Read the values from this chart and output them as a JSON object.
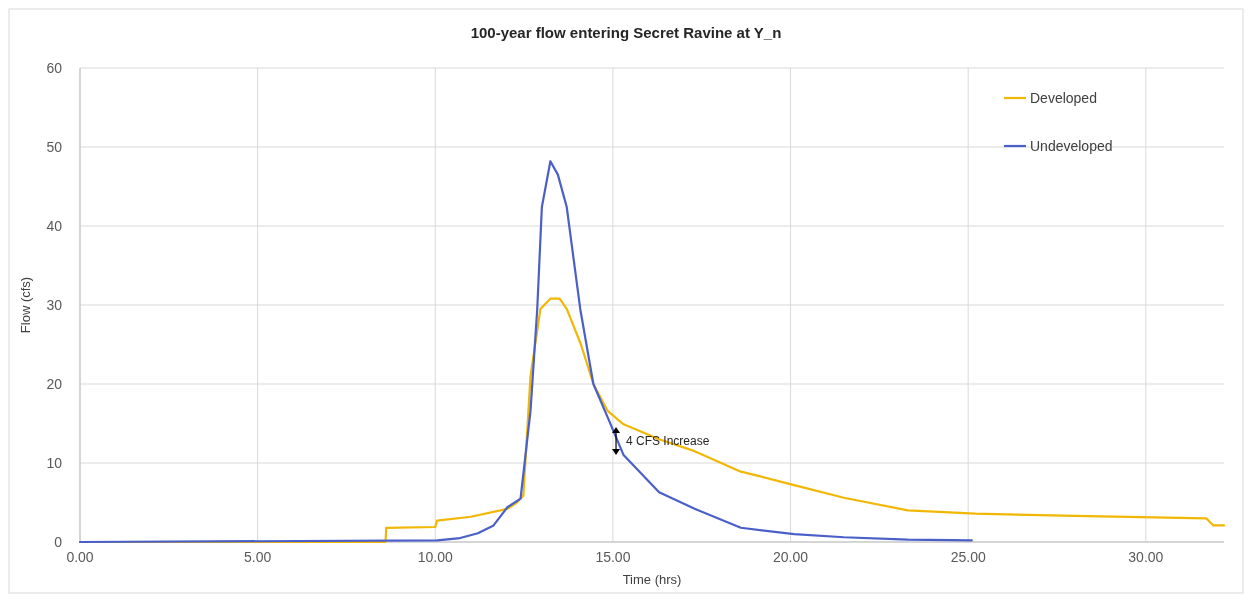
{
  "chart_data": {
    "type": "line",
    "title": "100-year flow entering Secret Ravine at Y_n",
    "xlabel": "Time (hrs)",
    "ylabel": "Flow (cfs)",
    "xlim": [
      0,
      32.2
    ],
    "xticks": [
      {
        "value": 0,
        "label": "0.00"
      },
      {
        "value": 5,
        "label": "5.00"
      },
      {
        "value": 10,
        "label": "10.00"
      },
      {
        "value": 15,
        "label": "15.00"
      },
      {
        "value": 20,
        "label": "20.00"
      },
      {
        "value": 25,
        "label": "25.00"
      },
      {
        "value": 30,
        "label": "30.00"
      }
    ],
    "ylim": [
      0,
      60
    ],
    "yticks": [
      0,
      10,
      20,
      30,
      40,
      50,
      60
    ],
    "grid": true,
    "legend": "top right",
    "marker": "none",
    "line_style": "solid",
    "annotations": [
      {
        "text": "4 CFS Increase",
        "x": 15.2,
        "y": 12.8
      }
    ],
    "series": [
      {
        "name": "Developed",
        "color": "#f2b705",
        "x": [
          0,
          8.6,
          8.62,
          10.0,
          10.05,
          11.0,
          12.03,
          12.3,
          12.48,
          12.68,
          12.96,
          13.24,
          13.5,
          13.7,
          14.1,
          14.45,
          14.85,
          15.3,
          16.3,
          17.3,
          18.6,
          19.15,
          20.1,
          21.5,
          23.3,
          25.2,
          28,
          31.7,
          31.9,
          32.2
        ],
        "values": [
          0,
          0,
          1.8,
          1.9,
          2.7,
          3.2,
          4.2,
          5,
          5.9,
          21,
          29.5,
          30.8,
          30.8,
          29.5,
          25,
          20,
          16.6,
          14.9,
          13,
          11.5,
          8.9,
          8.3,
          7.2,
          5.6,
          4.0,
          3.6,
          3.3,
          3.0,
          2.1,
          2.1
        ]
      },
      {
        "name": "Undeveloped",
        "color": "#4a5fc8",
        "x": [
          0,
          10.05,
          10.7,
          11.2,
          11.64,
          12.03,
          12.4,
          12.68,
          12.87,
          13.0,
          13.24,
          13.45,
          13.7,
          14.08,
          14.45,
          14.85,
          15.3,
          16.3,
          17.3,
          18.6,
          20.1,
          21.5,
          23.3,
          25.1
        ],
        "values": [
          0,
          0.2,
          0.5,
          1.1,
          2.1,
          4.4,
          5.5,
          16.6,
          29.5,
          42.4,
          48.2,
          46.5,
          42.4,
          29.5,
          20,
          15.8,
          11,
          6.3,
          4.2,
          1.8,
          1.0,
          0.6,
          0.3,
          0.2
        ]
      }
    ]
  }
}
